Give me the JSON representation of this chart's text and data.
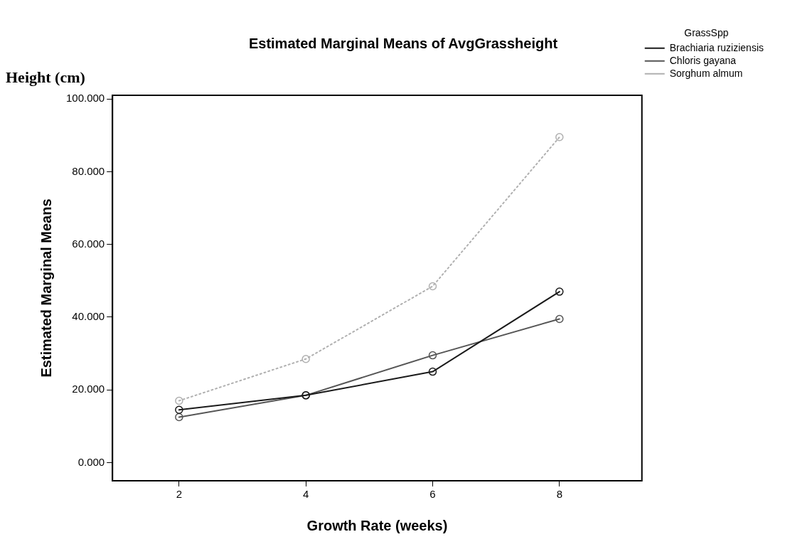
{
  "chart_data": {
    "type": "line",
    "title": "Estimated Marginal Means of AvgGrassheight",
    "xlabel": "Growth Rate (weeks)",
    "ylabel": "Estimated Marginal Means",
    "legend_title": "GrassSpp",
    "annotations": [
      "Height (cm)"
    ],
    "x": [
      2,
      4,
      6,
      8
    ],
    "series": [
      {
        "name": "Brachiaria ruziziensis",
        "color": "#1a1a1a",
        "values": [
          14.5,
          18.5,
          25,
          47
        ]
      },
      {
        "name": "Chloris gayana",
        "color": "#555555",
        "values": [
          12.5,
          18.5,
          29.5,
          39.5
        ]
      },
      {
        "name": "Sorghum almum",
        "color": "#b0b0b0",
        "values": [
          17,
          28.5,
          48.5,
          89.5
        ],
        "line_style": "dotted"
      }
    ],
    "xlim": [
      0.95,
      9.3
    ],
    "xticks": [
      2,
      4,
      6,
      8
    ],
    "ylim": [
      -5,
      101
    ],
    "yticks": [
      {
        "value": 0,
        "label": "0.000"
      },
      {
        "value": 20,
        "label": "20.000"
      },
      {
        "value": 40,
        "label": "40.000"
      },
      {
        "value": 60,
        "label": "60.000"
      },
      {
        "value": 80,
        "label": "80.000"
      },
      {
        "value": 100,
        "label": "100.000"
      }
    ],
    "grid": false,
    "legend": "top right",
    "marker": "circle"
  }
}
